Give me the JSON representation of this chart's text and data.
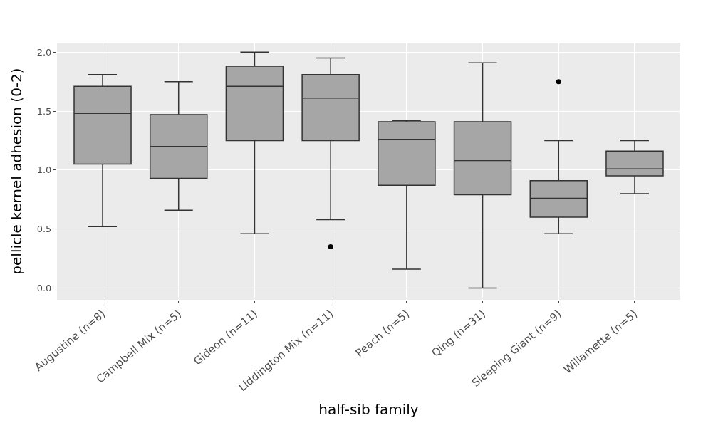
{
  "chart_data": {
    "type": "box",
    "xlabel": "half-sib family",
    "ylabel": "pellicle kernel adhesion (0-2)",
    "categories": [
      "Augustine (n=8)",
      "Campbell Mix (n=5)",
      "Gideon (n=11)",
      "Liddington Mix (n=11)",
      "Peach (n=5)",
      "Qing (n=31)",
      "Sleeping Giant (n=9)",
      "Willamette (n=5)"
    ],
    "boxes": [
      {
        "low": 0.52,
        "q1": 1.05,
        "median": 1.48,
        "q3": 1.71,
        "high": 1.81
      },
      {
        "low": 0.66,
        "q1": 0.93,
        "median": 1.2,
        "q3": 1.47,
        "high": 1.75
      },
      {
        "low": 0.46,
        "q1": 1.25,
        "median": 1.71,
        "q3": 1.88,
        "high": 2.0
      },
      {
        "low": 0.58,
        "q1": 1.25,
        "median": 1.61,
        "q3": 1.81,
        "high": 1.95,
        "outliers": [
          0.35
        ]
      },
      {
        "low": 0.16,
        "q1": 0.87,
        "median": 1.26,
        "q3": 1.41,
        "high": 1.42
      },
      {
        "low": 0.0,
        "q1": 0.79,
        "median": 1.08,
        "q3": 1.41,
        "high": 1.91
      },
      {
        "low": 0.46,
        "q1": 0.6,
        "median": 0.76,
        "q3": 0.91,
        "high": 1.25,
        "outliers": [
          1.75
        ]
      },
      {
        "low": 0.8,
        "q1": 0.95,
        "median": 1.01,
        "q3": 1.16,
        "high": 1.25
      }
    ],
    "color": "#a6a6a6",
    "ylim": [
      -0.1,
      2.08
    ],
    "yticks": [
      {
        "value": 0,
        "label": "0.0"
      },
      {
        "value": 0.5,
        "label": "0.5"
      },
      {
        "value": 1,
        "label": "1.0"
      },
      {
        "value": 1.5,
        "label": "1.5"
      },
      {
        "value": 2,
        "label": "2.0"
      }
    ],
    "grid": true
  }
}
